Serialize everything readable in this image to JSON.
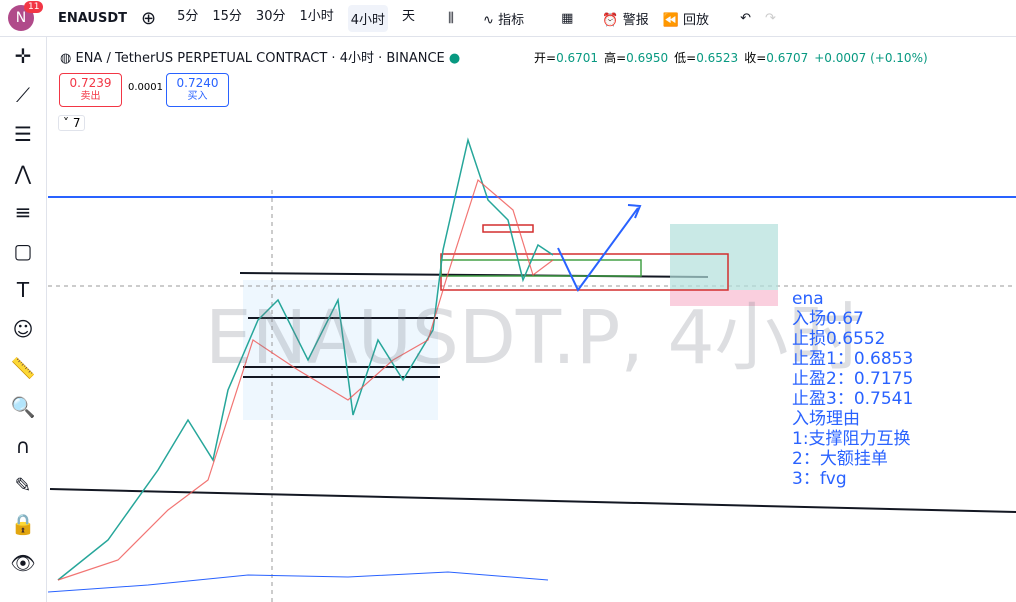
{
  "toolbar": {
    "avatar": "N",
    "badge": "11",
    "symbol": "ENAUSDT",
    "intervals": [
      "5分",
      "15分",
      "30分",
      "1小时",
      "4小时",
      "天"
    ],
    "indicators": "指标",
    "alert": "警报",
    "replay": "回放"
  },
  "legend": {
    "title": "ENA / TetherUS PERPETUAL CONTRACT · 4小时 · BINANCE",
    "ohlc": [
      {
        "label": "开=",
        "value": "0.6701"
      },
      {
        "label": "高=",
        "value": "0.6950"
      },
      {
        "label": "低=",
        "value": "0.6523"
      },
      {
        "label": "收=",
        "value": "0.6707"
      }
    ],
    "change": "+0.0007 (+0.10%)"
  },
  "order": {
    "sell_price": "0.7239",
    "sell_label": "卖出",
    "spread": "0.0001",
    "buy_price": "0.7240",
    "buy_label": "买入"
  },
  "indicator_count": "7",
  "watermark": "ENAUSDT.P, 4小时",
  "annotation": [
    "ena",
    "入场0.67",
    "止损0.6552",
    "止盈1：0.6853",
    "止盈2：0.7175",
    "止盈3：0.7541",
    "入场理由",
    "1:支撑阻力互换",
    "2：大额挂单",
    "3：fvg"
  ]
}
